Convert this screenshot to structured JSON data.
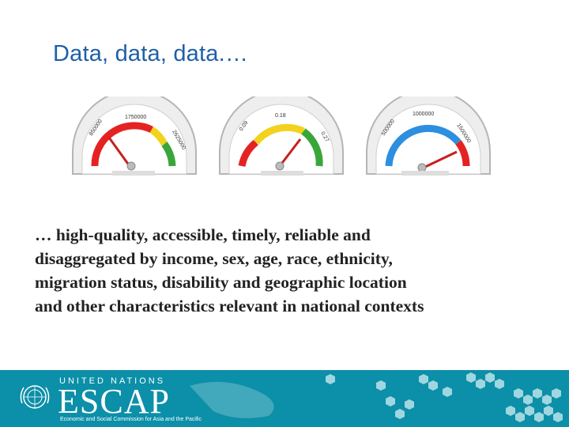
{
  "slide": {
    "title": "Data, data, data.…",
    "body_lines": [
      "… high-quality, accessible, timely, reliable and",
      "disaggregated by income, sex, age, race, ethnicity,",
      "migration status, disability and geographic location",
      "and other characteristics relevant in national contexts"
    ]
  },
  "gauges": [
    {
      "labels": [
        "850000",
        "1750000",
        "2625000"
      ],
      "level": 0.18,
      "colors": [
        "#e52222",
        "#f2d21c",
        "#3aa63a"
      ]
    },
    {
      "labels": [
        "0.09",
        "0.18",
        "0.27"
      ],
      "level": 0.75,
      "colors": [
        "#e52222",
        "#f2d21c",
        "#3aa63a"
      ]
    },
    {
      "labels": [
        "500000",
        "1000000",
        "1500000"
      ],
      "level": 0.9,
      "colors": [
        "#2d8fe0",
        "#e52222"
      ]
    }
  ],
  "footer": {
    "org_line": "UNITED NATIONS",
    "logo_text": "ESCAP",
    "subtitle": "Economic and Social Commission for Asia and the Pacific",
    "background": "#0c8fa8"
  }
}
